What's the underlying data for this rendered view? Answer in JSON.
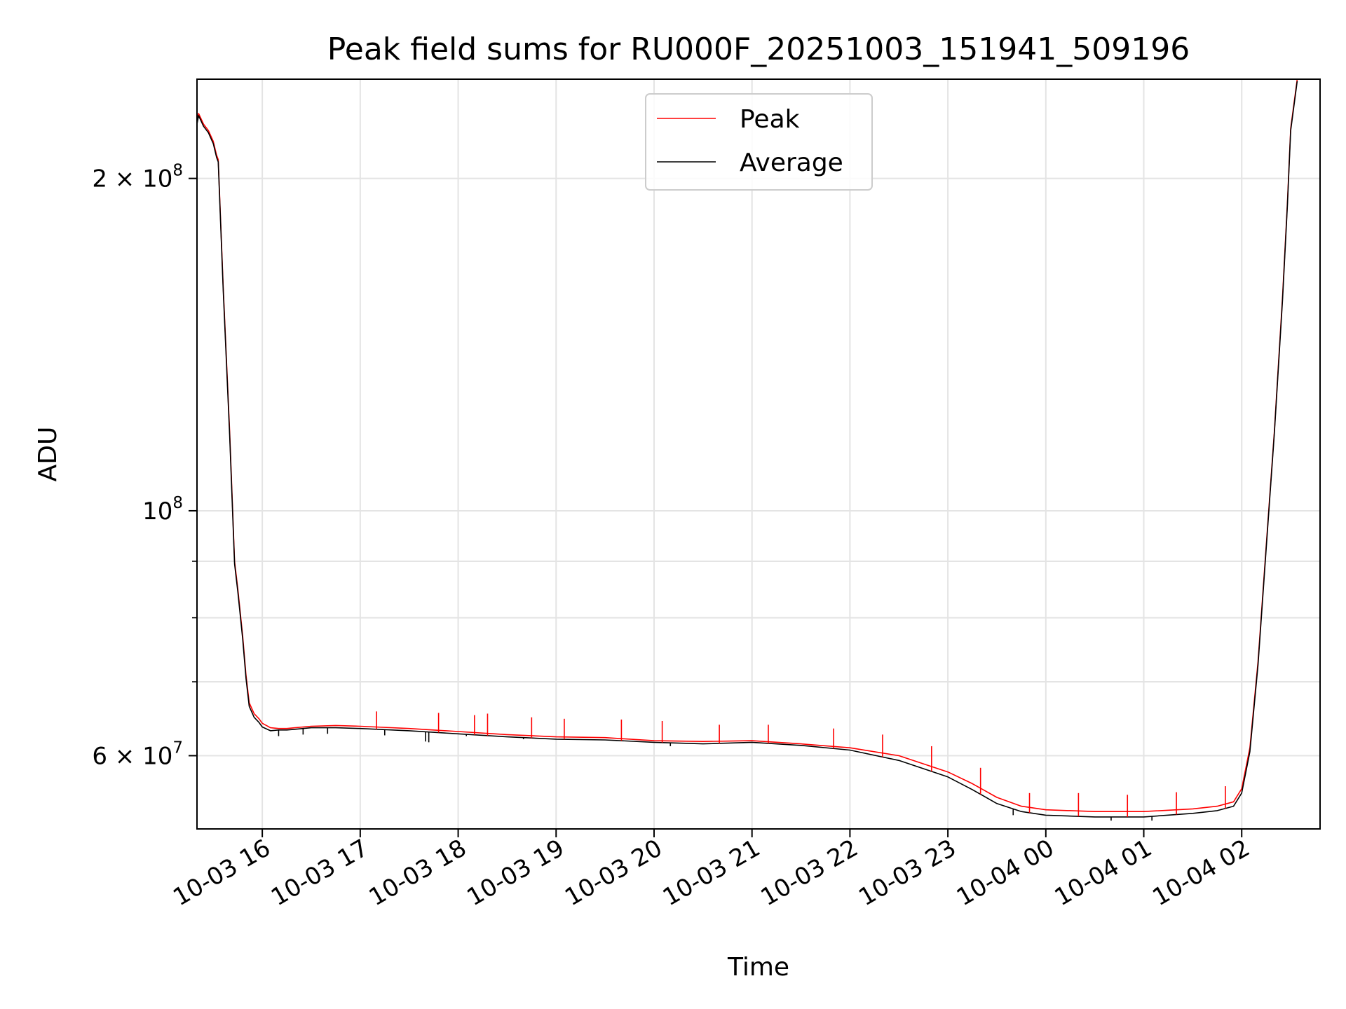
{
  "chart_data": {
    "type": "line",
    "title": "Peak field sums for RU000F_20251003_151941_509196",
    "xlabel": "Time",
    "ylabel": "ADU",
    "y_scale": "log",
    "ylim": [
      51500000,
      246000000
    ],
    "xlim": [
      "2025-10-03 15:20",
      "2025-10-04 02:48"
    ],
    "grid": true,
    "legend": {
      "placement": "upper center"
    },
    "x_ticks": [
      {
        "value": "2025-10-03 16:00",
        "label": "10-03 16"
      },
      {
        "value": "2025-10-03 17:00",
        "label": "10-03 17"
      },
      {
        "value": "2025-10-03 18:00",
        "label": "10-03 18"
      },
      {
        "value": "2025-10-03 19:00",
        "label": "10-03 19"
      },
      {
        "value": "2025-10-03 20:00",
        "label": "10-03 20"
      },
      {
        "value": "2025-10-03 21:00",
        "label": "10-03 21"
      },
      {
        "value": "2025-10-03 22:00",
        "label": "10-03 22"
      },
      {
        "value": "2025-10-03 23:00",
        "label": "10-03 23"
      },
      {
        "value": "2025-10-04 00:00",
        "label": "10-04 00"
      },
      {
        "value": "2025-10-04 01:00",
        "label": "10-04 01"
      },
      {
        "value": "2025-10-04 02:00",
        "label": "10-04 02"
      }
    ],
    "y_ticks": [
      {
        "value": 60000000,
        "mantissa": "6",
        "times": "×",
        "base": "10",
        "exp": "7"
      },
      {
        "value": 100000000,
        "mantissa": "",
        "times": "",
        "base": "10",
        "exp": "8"
      },
      {
        "value": 200000000,
        "mantissa": "2",
        "times": "×",
        "base": "10",
        "exp": "8"
      }
    ],
    "y_minor_ticks": [
      70000000,
      80000000,
      90000000
    ],
    "series": [
      {
        "name": "Peak",
        "color": "#ff0000",
        "x": [
          "2025-10-03 15:20",
          "2025-10-03 15:21",
          "2025-10-03 15:24",
          "2025-10-03 15:27",
          "2025-10-03 15:30",
          "2025-10-03 15:32",
          "2025-10-03 15:33",
          "2025-10-03 15:36",
          "2025-10-03 15:40",
          "2025-10-03 15:43",
          "2025-10-03 15:45",
          "2025-10-03 15:48",
          "2025-10-03 15:50",
          "2025-10-03 15:52",
          "2025-10-03 15:55",
          "2025-10-03 15:58",
          "2025-10-03 16:00",
          "2025-10-03 16:05",
          "2025-10-03 16:10",
          "2025-10-03 16:15",
          "2025-10-03 16:20",
          "2025-10-03 16:30",
          "2025-10-03 16:45",
          "2025-10-03 17:00",
          "2025-10-03 17:30",
          "2025-10-03 18:00",
          "2025-10-03 18:30",
          "2025-10-03 19:00",
          "2025-10-03 19:30",
          "2025-10-03 20:00",
          "2025-10-03 20:30",
          "2025-10-03 21:00",
          "2025-10-03 21:30",
          "2025-10-03 22:00",
          "2025-10-03 22:30",
          "2025-10-03 23:00",
          "2025-10-03 23:15",
          "2025-10-03 23:30",
          "2025-10-03 23:45",
          "2025-10-04 00:00",
          "2025-10-04 00:30",
          "2025-10-04 01:00",
          "2025-10-04 01:30",
          "2025-10-04 01:45",
          "2025-10-04 01:55",
          "2025-10-04 02:00",
          "2025-10-04 02:05",
          "2025-10-04 02:10",
          "2025-10-04 02:15",
          "2025-10-04 02:20",
          "2025-10-04 02:25",
          "2025-10-04 02:28",
          "2025-10-04 02:30",
          "2025-10-04 02:34"
        ],
        "y": [
          225000000,
          229000000,
          224000000,
          221000000,
          216000000,
          210000000,
          208000000,
          160000000,
          118000000,
          90000000,
          85000000,
          77000000,
          71000000,
          67000000,
          65500000,
          64800000,
          64200000,
          63600000,
          63500000,
          63500000,
          63600000,
          63800000,
          63900000,
          63800000,
          63500000,
          63100000,
          62700000,
          62400000,
          62300000,
          61900000,
          61800000,
          61900000,
          61500000,
          61000000,
          60000000,
          58000000,
          56600000,
          55000000,
          54000000,
          53600000,
          53400000,
          53400000,
          53700000,
          54000000,
          54500000,
          56000000,
          61000000,
          73000000,
          93000000,
          118000000,
          156000000,
          190000000,
          222000000,
          246000000
        ],
        "spikes": [
          {
            "x": "2025-10-03 17:10",
            "y": 65800000
          },
          {
            "x": "2025-10-03 17:48",
            "y": 65600000
          },
          {
            "x": "2025-10-03 18:10",
            "y": 65300000
          },
          {
            "x": "2025-10-03 18:18",
            "y": 65500000
          },
          {
            "x": "2025-10-03 18:45",
            "y": 65000000
          },
          {
            "x": "2025-10-03 19:05",
            "y": 64800000
          },
          {
            "x": "2025-10-03 19:40",
            "y": 64700000
          },
          {
            "x": "2025-10-03 20:05",
            "y": 64500000
          },
          {
            "x": "2025-10-03 20:40",
            "y": 64000000
          },
          {
            "x": "2025-10-03 21:10",
            "y": 64000000
          },
          {
            "x": "2025-10-03 21:50",
            "y": 63500000
          },
          {
            "x": "2025-10-03 22:20",
            "y": 62700000
          },
          {
            "x": "2025-10-03 22:50",
            "y": 61200000
          },
          {
            "x": "2025-10-03 23:20",
            "y": 58500000
          },
          {
            "x": "2025-10-03 23:50",
            "y": 55500000
          },
          {
            "x": "2025-10-04 00:20",
            "y": 55500000
          },
          {
            "x": "2025-10-04 00:50",
            "y": 55300000
          },
          {
            "x": "2025-10-04 01:20",
            "y": 55600000
          },
          {
            "x": "2025-10-04 01:50",
            "y": 56300000
          }
        ]
      },
      {
        "name": "Average",
        "color": "#000000",
        "x": [
          "2025-10-03 15:20",
          "2025-10-03 15:21",
          "2025-10-03 15:24",
          "2025-10-03 15:27",
          "2025-10-03 15:30",
          "2025-10-03 15:32",
          "2025-10-03 15:33",
          "2025-10-03 15:36",
          "2025-10-03 15:40",
          "2025-10-03 15:43",
          "2025-10-03 15:45",
          "2025-10-03 15:48",
          "2025-10-03 15:50",
          "2025-10-03 15:52",
          "2025-10-03 15:55",
          "2025-10-03 15:58",
          "2025-10-03 16:00",
          "2025-10-03 16:05",
          "2025-10-03 16:10",
          "2025-10-03 16:15",
          "2025-10-03 16:20",
          "2025-10-03 16:30",
          "2025-10-03 16:45",
          "2025-10-03 17:00",
          "2025-10-03 17:30",
          "2025-10-03 18:00",
          "2025-10-03 18:30",
          "2025-10-03 19:00",
          "2025-10-03 19:30",
          "2025-10-03 20:00",
          "2025-10-03 20:30",
          "2025-10-03 21:00",
          "2025-10-03 21:30",
          "2025-10-03 22:00",
          "2025-10-03 22:30",
          "2025-10-03 23:00",
          "2025-10-03 23:15",
          "2025-10-03 23:30",
          "2025-10-03 23:45",
          "2025-10-04 00:00",
          "2025-10-04 00:30",
          "2025-10-04 01:00",
          "2025-10-04 01:30",
          "2025-10-04 01:45",
          "2025-10-04 01:55",
          "2025-10-04 02:00",
          "2025-10-04 02:05",
          "2025-10-04 02:10",
          "2025-10-04 02:15",
          "2025-10-04 02:20",
          "2025-10-04 02:25",
          "2025-10-04 02:28",
          "2025-10-04 02:30",
          "2025-10-04 02:34"
        ],
        "y": [
          224000000,
          228000000,
          223000000,
          220000000,
          215000000,
          209000000,
          207000000,
          159000000,
          117000000,
          89500000,
          84500000,
          76500000,
          70500000,
          66500000,
          65000000,
          64300000,
          63700000,
          63200000,
          63300000,
          63300000,
          63400000,
          63600000,
          63600000,
          63500000,
          63200000,
          62800000,
          62400000,
          62100000,
          62000000,
          61700000,
          61500000,
          61700000,
          61300000,
          60700000,
          59400000,
          57400000,
          55900000,
          54300000,
          53400000,
          53000000,
          52800000,
          52800000,
          53200000,
          53500000,
          54000000,
          55500000,
          60500000,
          72500000,
          92500000,
          117500000,
          155000000,
          189000000,
          221000000,
          245000000
        ],
        "dips": [
          {
            "x": "2025-10-03 16:10",
            "y": 62500000
          },
          {
            "x": "2025-10-03 16:25",
            "y": 62700000
          },
          {
            "x": "2025-10-03 16:40",
            "y": 62800000
          },
          {
            "x": "2025-10-03 17:15",
            "y": 62600000
          },
          {
            "x": "2025-10-03 17:40",
            "y": 61800000
          },
          {
            "x": "2025-10-03 17:42",
            "y": 61700000
          },
          {
            "x": "2025-10-03 18:05",
            "y": 62500000
          },
          {
            "x": "2025-10-03 18:40",
            "y": 62100000
          },
          {
            "x": "2025-10-03 20:10",
            "y": 61200000
          },
          {
            "x": "2025-10-03 23:40",
            "y": 53000000
          },
          {
            "x": "2025-10-04 00:40",
            "y": 52400000
          },
          {
            "x": "2025-10-04 01:05",
            "y": 52400000
          }
        ]
      }
    ]
  }
}
